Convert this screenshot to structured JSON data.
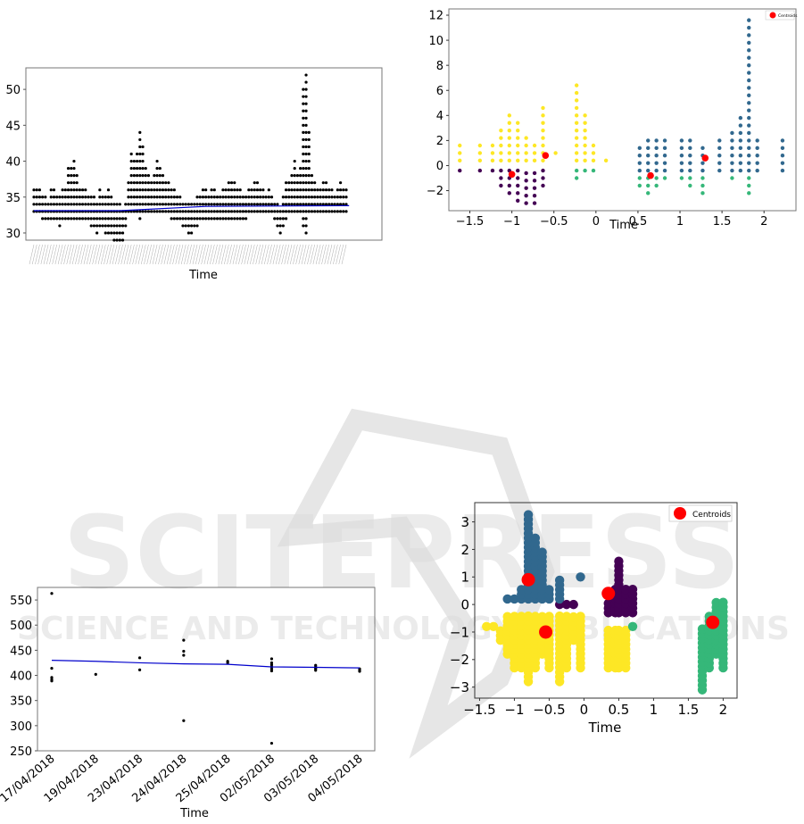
{
  "watermark": {
    "main": "SCITEPRESS",
    "sub": "SCIENCE AND TECHNOLOGY PUBLICATIONS"
  },
  "chart_data": [
    {
      "type": "scatter",
      "xlabel": "Time",
      "ylabel": "",
      "ylim": [
        29,
        53
      ],
      "yticks": [
        30,
        35,
        40,
        45,
        50
      ],
      "n_columns": 110,
      "column_ranges": [
        [
          33,
          36
        ],
        [
          33,
          36
        ],
        [
          33,
          36
        ],
        [
          32,
          35
        ],
        [
          32,
          35
        ],
        [
          32,
          34
        ],
        [
          32,
          36
        ],
        [
          32,
          36
        ],
        [
          32,
          35
        ],
        [
          31,
          35
        ],
        [
          32,
          36
        ],
        [
          32,
          36
        ],
        [
          32,
          39
        ],
        [
          32,
          39
        ],
        [
          32,
          40
        ],
        [
          32,
          38
        ],
        [
          32,
          36
        ],
        [
          32,
          36
        ],
        [
          32,
          36
        ],
        [
          32,
          35
        ],
        [
          31,
          35
        ],
        [
          31,
          35
        ],
        [
          30,
          34
        ],
        [
          31,
          36
        ],
        [
          31,
          35
        ],
        [
          30,
          35
        ],
        [
          30,
          36
        ],
        [
          30,
          35
        ],
        [
          29,
          34
        ],
        [
          29,
          34
        ],
        [
          29,
          34
        ],
        [
          29,
          33
        ],
        [
          31,
          34
        ],
        [
          33,
          37
        ],
        [
          33,
          41
        ],
        [
          33,
          40
        ],
        [
          33,
          41
        ],
        [
          32,
          44
        ],
        [
          33,
          42
        ],
        [
          33,
          39
        ],
        [
          33,
          38
        ],
        [
          33,
          37
        ],
        [
          33,
          38
        ],
        [
          33,
          40
        ],
        [
          33,
          39
        ],
        [
          33,
          38
        ],
        [
          33,
          37
        ],
        [
          33,
          37
        ],
        [
          32,
          36
        ],
        [
          32,
          36
        ],
        [
          32,
          35
        ],
        [
          32,
          35
        ],
        [
          31,
          34
        ],
        [
          31,
          34
        ],
        [
          30,
          34
        ],
        [
          30,
          34
        ],
        [
          31,
          34
        ],
        [
          31,
          35
        ],
        [
          32,
          35
        ],
        [
          32,
          36
        ],
        [
          32,
          36
        ],
        [
          32,
          35
        ],
        [
          32,
          36
        ],
        [
          32,
          36
        ],
        [
          32,
          35
        ],
        [
          32,
          35
        ],
        [
          32,
          36
        ],
        [
          32,
          36
        ],
        [
          32,
          37
        ],
        [
          32,
          37
        ],
        [
          32,
          37
        ],
        [
          32,
          36
        ],
        [
          32,
          36
        ],
        [
          32,
          35
        ],
        [
          32,
          35
        ],
        [
          33,
          36
        ],
        [
          33,
          36
        ],
        [
          33,
          37
        ],
        [
          33,
          37
        ],
        [
          33,
          36
        ],
        [
          33,
          36
        ],
        [
          33,
          35
        ],
        [
          33,
          36
        ],
        [
          33,
          35
        ],
        [
          32,
          34
        ],
        [
          31,
          34
        ],
        [
          30,
          33
        ],
        [
          31,
          35
        ],
        [
          32,
          37
        ],
        [
          33,
          37
        ],
        [
          33,
          38
        ],
        [
          33,
          40
        ],
        [
          33,
          38
        ],
        [
          33,
          39
        ],
        [
          31,
          50
        ],
        [
          30,
          52
        ],
        [
          33,
          44
        ],
        [
          33,
          38
        ],
        [
          33,
          37
        ],
        [
          33,
          36
        ],
        [
          33,
          36
        ],
        [
          33,
          37
        ],
        [
          33,
          37
        ],
        [
          33,
          36
        ],
        [
          33,
          36
        ],
        [
          33,
          35
        ],
        [
          33,
          36
        ],
        [
          33,
          37
        ],
        [
          33,
          36
        ],
        [
          33,
          36
        ]
      ],
      "trend": [
        [
          0,
          33.1
        ],
        [
          30,
          33.1
        ],
        [
          60,
          33.7
        ],
        [
          110,
          33.8
        ]
      ],
      "trend_color": "#0000cc",
      "point_color": "#000000"
    },
    {
      "type": "scatter",
      "xlabel": "Time",
      "ylabel": "",
      "xlim": [
        -1.75,
        2.38
      ],
      "ylim": [
        -3.6,
        12.5
      ],
      "xticks": [
        -1.5,
        -1.0,
        -0.5,
        0.0,
        0.5,
        1.0,
        1.5,
        2.0
      ],
      "yticks": [
        -2,
        0,
        2,
        4,
        6,
        8,
        10,
        12
      ],
      "legend": [
        "Centroids"
      ],
      "legend_position": "top-right",
      "cluster_colors": {
        "purple": "#440154",
        "blue": "#31688e",
        "green": "#35b779",
        "yellow": "#fde725"
      },
      "columns": [
        {
          "x": -1.62,
          "yellow": [
            0.4,
            1.6
          ],
          "purple": [
            -0.4,
            -0.4
          ]
        },
        {
          "x": -1.38,
          "yellow": [
            0.4,
            1.6
          ],
          "purple": [
            -0.4,
            -0.4
          ]
        },
        {
          "x": -1.23,
          "yellow": [
            0.4,
            1.6
          ],
          "purple": [
            -0.4,
            -0.4
          ]
        },
        {
          "x": -1.13,
          "yellow": [
            0.4,
            3.0
          ],
          "purple": [
            -0.4,
            -1.6
          ]
        },
        {
          "x": -1.03,
          "yellow": [
            0.4,
            4.2
          ],
          "purple": [
            -0.4,
            -2.2
          ]
        },
        {
          "x": -0.93,
          "yellow": [
            0.4,
            3.6
          ],
          "purple": [
            -0.4,
            -2.8
          ]
        },
        {
          "x": -0.83,
          "yellow": [
            0.4,
            2.2
          ],
          "purple": [
            -0.4,
            -3.0
          ]
        },
        {
          "x": -0.73,
          "yellow": [
            0.4,
            1.6
          ],
          "purple": [
            -0.4,
            -3.0
          ]
        },
        {
          "x": -0.63,
          "yellow": [
            0.4,
            4.8
          ],
          "purple": [
            -0.4,
            -1.6
          ]
        },
        {
          "x": -0.48,
          "yellow": [
            1.0,
            1.0
          ]
        },
        {
          "x": -0.23,
          "yellow": [
            0.4,
            6.8
          ],
          "green": [
            -0.4,
            -1.0
          ]
        },
        {
          "x": -0.13,
          "yellow": [
            0.4,
            4.2
          ],
          "green": [
            -0.4,
            -0.4
          ]
        },
        {
          "x": -0.03,
          "yellow": [
            0.4,
            1.6
          ],
          "green": [
            -0.4,
            -0.4
          ]
        },
        {
          "x": 0.12,
          "yellow": [
            0.4,
            0.4
          ]
        },
        {
          "x": 0.52,
          "blue": [
            -0.4,
            1.6
          ],
          "green": [
            -1.0,
            -1.6
          ]
        },
        {
          "x": 0.62,
          "blue": [
            -0.4,
            2.2
          ],
          "green": [
            -1.0,
            -2.2
          ]
        },
        {
          "x": 0.72,
          "blue": [
            -0.4,
            2.2
          ],
          "green": [
            -1.0,
            -1.6
          ]
        },
        {
          "x": 0.82,
          "blue": [
            -0.4,
            2.2
          ],
          "green": [
            -1.0,
            -1.0
          ]
        },
        {
          "x": 1.02,
          "blue": [
            -0.4,
            2.2
          ],
          "green": [
            -1.0,
            -1.0
          ]
        },
        {
          "x": 1.12,
          "blue": [
            -0.4,
            2.2
          ],
          "green": [
            -1.0,
            -1.6
          ]
        },
        {
          "x": 1.27,
          "blue": [
            -0.4,
            1.6
          ],
          "green": [
            -1.0,
            -2.2
          ]
        },
        {
          "x": 1.47,
          "blue": [
            -0.4,
            2.2
          ]
        },
        {
          "x": 1.62,
          "blue": [
            -0.4,
            2.8
          ],
          "green": [
            -1.0,
            -1.0
          ]
        },
        {
          "x": 1.72,
          "blue": [
            -0.4,
            4.2
          ]
        },
        {
          "x": 1.82,
          "blue": [
            -0.4,
            12.0
          ],
          "green": [
            -1.0,
            -2.2
          ]
        },
        {
          "x": 1.92,
          "blue": [
            -0.4,
            2.2
          ]
        },
        {
          "x": 2.22,
          "blue": [
            -0.4,
            2.2
          ]
        }
      ],
      "centroids": [
        [
          -1.0,
          -0.7
        ],
        [
          -0.6,
          0.8
        ],
        [
          0.65,
          -0.8
        ],
        [
          1.3,
          0.6
        ]
      ],
      "centroid_color": "#ff0000"
    },
    {
      "type": "scatter",
      "xlabel": "Time",
      "ylabel": "",
      "ylim": [
        250,
        575
      ],
      "yticks": [
        250,
        300,
        350,
        400,
        450,
        500,
        550
      ],
      "categories": [
        "17/04/2018",
        "19/04/2018",
        "23/04/2018",
        "24/04/2018",
        "25/04/2018",
        "02/05/2018",
        "03/05/2018",
        "04/05/2018"
      ],
      "points": [
        [
          0,
          563
        ],
        [
          0,
          414
        ],
        [
          0,
          396
        ],
        [
          0,
          392
        ],
        [
          0,
          389
        ],
        [
          1,
          402
        ],
        [
          2,
          435
        ],
        [
          2,
          411
        ],
        [
          3,
          470
        ],
        [
          3,
          448
        ],
        [
          3,
          440
        ],
        [
          3,
          310
        ],
        [
          4,
          428
        ],
        [
          4,
          425
        ],
        [
          5,
          433
        ],
        [
          5,
          425
        ],
        [
          5,
          421
        ],
        [
          5,
          417
        ],
        [
          5,
          413
        ],
        [
          5,
          409
        ],
        [
          5,
          265
        ],
        [
          6,
          420
        ],
        [
          6,
          417
        ],
        [
          6,
          415
        ],
        [
          6,
          413
        ],
        [
          6,
          410
        ],
        [
          7,
          413
        ],
        [
          7,
          410
        ],
        [
          7,
          408
        ]
      ],
      "trend": [
        [
          0,
          430
        ],
        [
          1,
          428
        ],
        [
          2,
          425
        ],
        [
          3,
          423
        ],
        [
          4,
          422
        ],
        [
          5,
          417
        ],
        [
          6,
          416
        ],
        [
          7,
          415
        ]
      ],
      "trend_color": "#0000cc",
      "point_color": "#000000"
    },
    {
      "type": "scatter",
      "xlabel": "Time",
      "ylabel": "",
      "xlim": [
        -1.57,
        2.2
      ],
      "ylim": [
        -3.4,
        3.7
      ],
      "xticks": [
        -1.5,
        -1.0,
        -0.5,
        0.0,
        0.5,
        1.0,
        1.5,
        2.0
      ],
      "yticks": [
        -3,
        -2,
        -1,
        0,
        1,
        2,
        3
      ],
      "legend": [
        "Centroids"
      ],
      "legend_position": "top-right",
      "cluster_colors": {
        "purple": "#440154",
        "blue": "#31688e",
        "green": "#35b779",
        "yellow": "#fde725"
      },
      "columns": [
        {
          "x": -1.4,
          "yellow": [
            -0.8,
            -0.8
          ]
        },
        {
          "x": -1.3,
          "yellow": [
            -0.8,
            -0.8
          ]
        },
        {
          "x": -1.2,
          "yellow": [
            -0.8,
            -1.3
          ]
        },
        {
          "x": -1.1,
          "yellow": [
            -0.3,
            -1.8
          ],
          "blue": [
            0.2,
            0.2
          ]
        },
        {
          "x": -1.0,
          "yellow": [
            -0.3,
            -2.3
          ],
          "blue": [
            0.2,
            0.2
          ]
        },
        {
          "x": -0.9,
          "yellow": [
            -0.3,
            -2.3
          ],
          "blue": [
            0.2,
            0.7
          ]
        },
        {
          "x": -0.8,
          "yellow": [
            -0.3,
            -2.8
          ],
          "blue": [
            0.2,
            3.4
          ]
        },
        {
          "x": -0.7,
          "yellow": [
            -0.3,
            -2.3
          ],
          "blue": [
            0.2,
            2.5
          ]
        },
        {
          "x": -0.6,
          "yellow": [
            -0.3,
            -1.8
          ],
          "blue": [
            0.2,
            2.0
          ]
        },
        {
          "x": -0.5,
          "yellow": [
            -0.3,
            -2.3
          ],
          "blue": [
            0.2,
            0.7
          ]
        },
        {
          "x": -0.35,
          "yellow": [
            -0.3,
            -2.8
          ],
          "blue": [
            0.2,
            1.0
          ],
          "purple": [
            0.0,
            0.0
          ]
        },
        {
          "x": -0.25,
          "yellow": [
            -0.3,
            -2.3
          ],
          "purple": [
            0.0,
            0.0
          ]
        },
        {
          "x": -0.15,
          "yellow": [
            -0.3,
            -1.3
          ],
          "purple": [
            0.0,
            0.0
          ]
        },
        {
          "x": -0.05,
          "yellow": [
            -0.3,
            -2.3
          ],
          "blue": [
            1.0,
            1.0
          ]
        },
        {
          "x": 0.35,
          "yellow": [
            -0.8,
            -2.3
          ],
          "purple": [
            -0.3,
            0.2
          ]
        },
        {
          "x": 0.45,
          "yellow": [
            -0.8,
            -2.3
          ],
          "purple": [
            -0.3,
            0.7
          ]
        },
        {
          "x": 0.5,
          "yellow": [
            -0.8,
            -2.3
          ],
          "purple": [
            -0.3,
            1.6
          ]
        },
        {
          "x": 0.6,
          "yellow": [
            -0.8,
            -2.3
          ],
          "purple": [
            -0.3,
            0.7
          ]
        },
        {
          "x": 0.7,
          "purple": [
            -0.3,
            0.7
          ],
          "green": [
            -0.8,
            -0.8
          ]
        },
        {
          "x": 1.7,
          "green": [
            -0.8,
            -3.1
          ]
        },
        {
          "x": 1.8,
          "green": [
            -0.3,
            -2.3
          ]
        },
        {
          "x": 1.9,
          "green": [
            0.2,
            -1.8
          ]
        },
        {
          "x": 2.0,
          "green": [
            0.2,
            -2.3
          ]
        }
      ],
      "centroids": [
        [
          -0.8,
          0.9
        ],
        [
          -0.55,
          -1.0
        ],
        [
          0.35,
          0.4
        ],
        [
          1.85,
          -0.65
        ]
      ],
      "centroid_color": "#ff0000"
    }
  ]
}
